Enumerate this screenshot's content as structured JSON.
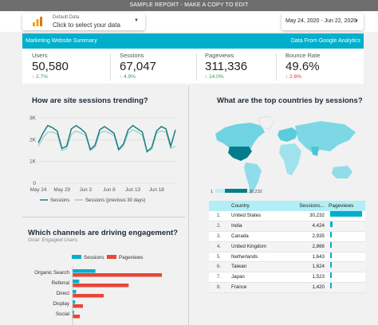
{
  "banner": "SAMPLE REPORT - MAKE A COPY TO EDIT",
  "data_source": {
    "small_label": "Default Data",
    "main_label": "Click to select your data",
    "icon": "bar-chart-icon",
    "caret": "▼"
  },
  "date_range": {
    "value": "May 24, 2020 - Jun 22, 2020",
    "caret": "▼"
  },
  "title_bar": {
    "left": "Marketing Website Summary",
    "right": "Data From Google Analytics",
    "color": "#00afcb"
  },
  "kpis": [
    {
      "label": "Users",
      "value": "50,580",
      "delta": "↑ 2.7%",
      "direction": "up"
    },
    {
      "label": "Sessions",
      "value": "67,047",
      "delta": "↑ 4.9%",
      "direction": "up"
    },
    {
      "label": "Pageviews",
      "value": "311,336",
      "delta": "↑ 14.0%",
      "direction": "up"
    },
    {
      "label": "Bounce Rate",
      "value": "49.6%",
      "delta": "↑ 2.6%",
      "direction": "down"
    }
  ],
  "trend_panel": {
    "title": "How are site sessions trending?"
  },
  "map_panel": {
    "title": "What are the top countries by sessions?",
    "scale_min": "1",
    "scale_max": "30,232"
  },
  "channels_panel": {
    "title": "Which channels are driving engagement?",
    "subtitle": "Goal: Engaged Users"
  },
  "table": {
    "headers": {
      "country": "Country",
      "sessions": "Sessions...",
      "pageviews": "Pageviews"
    },
    "rows": [
      {
        "idx": "1.",
        "country": "United States",
        "sessions": "30,232",
        "pv_share": 1.0
      },
      {
        "idx": "2.",
        "country": "India",
        "sessions": "4,424",
        "pv_share": 0.07
      },
      {
        "idx": "3.",
        "country": "Canada",
        "sessions": "2,935",
        "pv_share": 0.06
      },
      {
        "idx": "4.",
        "country": "United Kingdom",
        "sessions": "2,866",
        "pv_share": 0.06
      },
      {
        "idx": "5.",
        "country": "Netherlands",
        "sessions": "1,643",
        "pv_share": 0.03
      },
      {
        "idx": "6.",
        "country": "Taiwan",
        "sessions": "1,624",
        "pv_share": 0.03
      },
      {
        "idx": "7.",
        "country": "Japan",
        "sessions": "1,523",
        "pv_share": 0.02
      },
      {
        "idx": "8.",
        "country": "France",
        "sessions": "1,420",
        "pv_share": 0.02
      }
    ]
  },
  "chart_data": [
    {
      "type": "line",
      "x": [
        "May 24",
        "May 25",
        "May 26",
        "May 27",
        "May 28",
        "May 29",
        "May 30",
        "May 31",
        "Jun 1",
        "Jun 2",
        "Jun 3",
        "Jun 4",
        "Jun 5",
        "Jun 6",
        "Jun 7",
        "Jun 8",
        "Jun 9",
        "Jun 10",
        "Jun 11",
        "Jun 12",
        "Jun 13",
        "Jun 14",
        "Jun 15",
        "Jun 16",
        "Jun 17",
        "Jun 18",
        "Jun 19",
        "Jun 20",
        "Jun 21",
        "Jun 22"
      ],
      "x_tick_labels": [
        "May 24",
        "May 29",
        "Jun 3",
        "Jun 8",
        "Jun 13",
        "Jun 18"
      ],
      "y_tick_labels": [
        "0",
        "1K",
        "2K",
        "3K"
      ],
      "ylim": [
        0,
        3000
      ],
      "series": [
        {
          "name": "Sessions",
          "color": "#1e7d85",
          "values": [
            1850,
            2300,
            2650,
            2550,
            2400,
            1600,
            1700,
            2500,
            2650,
            2500,
            2300,
            1550,
            1750,
            2450,
            2600,
            2450,
            2300,
            1550,
            1800,
            2450,
            2650,
            2500,
            2350,
            1450,
            1650,
            2400,
            2600,
            2500,
            1700,
            2450
          ]
        },
        {
          "name": "Sessions (previous 30 days)",
          "color": "#8fd3c6",
          "values": [
            1700,
            2100,
            2350,
            2350,
            2250,
            1500,
            1600,
            2250,
            2400,
            2300,
            2200,
            1500,
            1650,
            2300,
            2400,
            2300,
            2200,
            1500,
            1700,
            2300,
            2450,
            2350,
            2200,
            1450,
            1550,
            2300,
            2400,
            2350,
            1600,
            1700
          ]
        }
      ]
    },
    {
      "type": "bar",
      "orientation": "horizontal",
      "categories": [
        "Organic Search",
        "Referral",
        "Direct",
        "Display",
        "Social"
      ],
      "series": [
        {
          "name": "Sessions",
          "color": "#00afcb",
          "values": [
            11000,
            3200,
            1700,
            1200,
            700
          ]
        },
        {
          "name": "Pageviews",
          "color": "#e8463a",
          "values": [
            43000,
            27000,
            15000,
            5000,
            3500
          ]
        }
      ]
    }
  ]
}
